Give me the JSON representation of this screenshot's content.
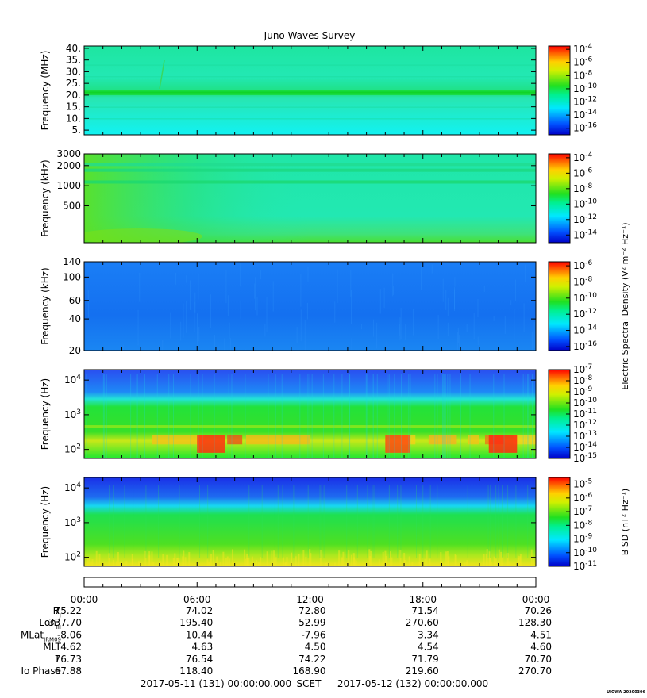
{
  "chart_data": {
    "type": "heatmap",
    "title": "Juno Waves Survey",
    "panels": [
      {
        "ylabel": "Frequency (MHz)",
        "yscale": "linear",
        "ylim": [
          3,
          41
        ],
        "yticks": [
          {
            "v": 5,
            "label": "5."
          },
          {
            "v": 10,
            "label": "10."
          },
          {
            "v": 15,
            "label": "15."
          },
          {
            "v": 20,
            "label": "20."
          },
          {
            "v": 25,
            "label": "25."
          },
          {
            "v": 30,
            "label": "30."
          },
          {
            "v": 35,
            "label": "35."
          },
          {
            "v": 40,
            "label": "40."
          }
        ],
        "cbar": {
          "exponents": [
            "-4",
            "-6",
            "-8",
            "-10",
            "-12",
            "-14",
            "-16"
          ],
          "range": [
            -17,
            -3.5
          ],
          "label": ""
        },
        "color_scheme": "hf"
      },
      {
        "ylabel": "Frequency (kHz)",
        "yscale": "log",
        "ylim": [
          140,
          3000
        ],
        "yticks": [
          {
            "v": 500,
            "label": "500"
          },
          {
            "v": 1000,
            "label": "1000"
          },
          {
            "v": 2000,
            "label": "2000"
          },
          {
            "v": 3000,
            "label": "3000"
          }
        ],
        "cbar": {
          "exponents": [
            "-4",
            "-6",
            "-8",
            "-10",
            "-12",
            "-14"
          ],
          "range": [
            -15,
            -3.5
          ],
          "label": ""
        },
        "color_scheme": "mf"
      },
      {
        "ylabel": "Frequency (kHz)",
        "yscale": "log",
        "ylim": [
          20,
          140
        ],
        "yticks": [
          {
            "v": 20,
            "label": "20"
          },
          {
            "v": 40,
            "label": "40"
          },
          {
            "v": 60,
            "label": "60"
          },
          {
            "v": 100,
            "label": "100"
          },
          {
            "v": 140,
            "label": "140"
          }
        ],
        "cbar": {
          "exponents": [
            "-6",
            "-8",
            "-10",
            "-12",
            "-14",
            "-16"
          ],
          "range": [
            -16.5,
            -5.5
          ],
          "label": "Electric Spectral Density (V² m⁻² Hz⁻¹)"
        },
        "color_scheme": "lf"
      },
      {
        "ylabel": "Frequency (Hz)",
        "yscale": "log",
        "ylim": [
          55,
          20000
        ],
        "yticks": [
          {
            "v": 100,
            "label": "10",
            "exp": "2"
          },
          {
            "v": 1000,
            "label": "10",
            "exp": "3"
          },
          {
            "v": 10000,
            "label": "10",
            "exp": "4"
          }
        ],
        "cbar": {
          "exponents": [
            "-7",
            "-8",
            "-9",
            "-10",
            "-11",
            "-12",
            "-13",
            "-14",
            "-15"
          ],
          "range": [
            -15,
            -7
          ],
          "label": ""
        },
        "color_scheme": "elf"
      },
      {
        "ylabel": "Frequency (Hz)",
        "yscale": "log",
        "ylim": [
          55,
          20000
        ],
        "yticks": [
          {
            "v": 100,
            "label": "10",
            "exp": "2"
          },
          {
            "v": 1000,
            "label": "10",
            "exp": "3"
          },
          {
            "v": 10000,
            "label": "10",
            "exp": "4"
          }
        ],
        "cbar": {
          "exponents": [
            "-5",
            "-6",
            "-7",
            "-8",
            "-9",
            "-10",
            "-11"
          ],
          "range": [
            -11,
            -4.5
          ],
          "label": "B SD (nT² Hz⁻¹)"
        },
        "color_scheme": "bsd"
      }
    ],
    "x_ticks": [
      "00:00",
      "06:00",
      "12:00",
      "18:00",
      "00:00"
    ],
    "xlim_hours": [
      0,
      24
    ],
    "ephemeris": [
      {
        "label": "R",
        "sub": "J",
        "values": [
          "75.22",
          "74.02",
          "72.80",
          "71.54",
          "70.26"
        ]
      },
      {
        "label": "Lon",
        "sub": "III",
        "values": [
          "337.70",
          "195.40",
          "52.99",
          "270.60",
          "128.30"
        ]
      },
      {
        "label": "MLat",
        "sub": "JRM09",
        "values": [
          "-8.06",
          "10.44",
          "-7.96",
          "3.34",
          "4.51"
        ]
      },
      {
        "label": "MLT",
        "sub": "",
        "values": [
          "4.62",
          "4.63",
          "4.50",
          "4.54",
          "4.60"
        ]
      },
      {
        "label": "L",
        "sub": "",
        "values": [
          "76.73",
          "76.54",
          "74.22",
          "71.79",
          "70.70"
        ]
      },
      {
        "label": "Io Phase",
        "sub": "",
        "values": [
          "67.88",
          "118.40",
          "168.90",
          "219.60",
          "270.70"
        ]
      }
    ],
    "time_start": "2017-05-11 (131) 00:00:00.000",
    "time_label": "SCET",
    "time_end": "2017-05-12 (132) 00:00:00.000",
    "stamp": "UIOWA 20200306"
  }
}
